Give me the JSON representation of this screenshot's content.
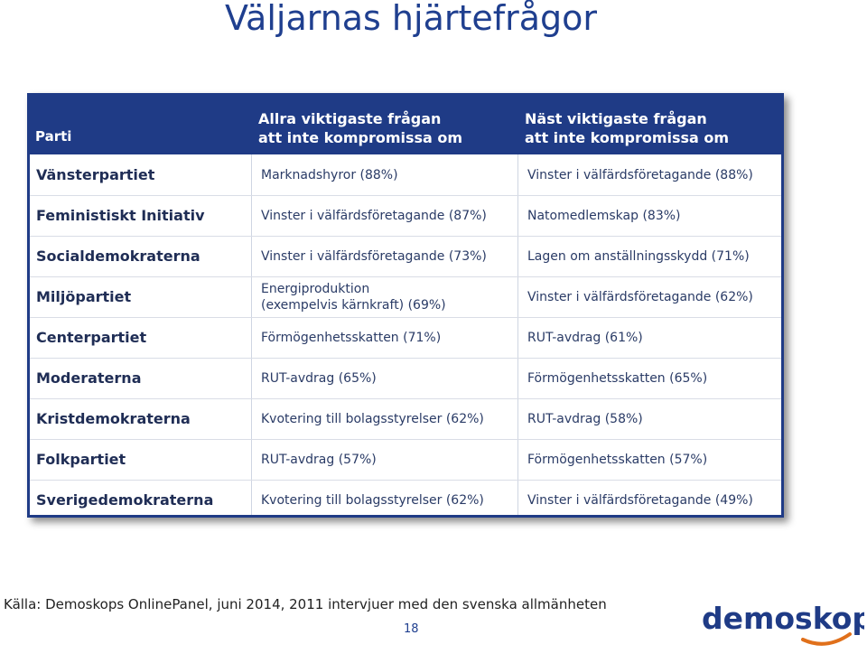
{
  "title": "Väljarnas hjärtefrågor",
  "table": {
    "headers": {
      "party": "Parti",
      "col1_line1": "Allra viktigaste frågan",
      "col1_line2": "att inte kompromissa om",
      "col2_line1": "Näst viktigaste frågan",
      "col2_line2": "att inte kompromissa om"
    },
    "rows": [
      {
        "party": "Vänsterpartiet",
        "first": "Marknadshyror (88%)",
        "second": "Vinster i välfärdsföretagande (88%)"
      },
      {
        "party": "Feministiskt Initiativ",
        "first": "Vinster i välfärdsföretagande (87%)",
        "second": "Natomedlemskap (83%)"
      },
      {
        "party": "Socialdemokraterna",
        "first": "Vinster i välfärdsföretagande (73%)",
        "second": "Lagen om anställningsskydd (71%)"
      },
      {
        "party": "Miljöpartiet",
        "first_line1": "Energiproduktion",
        "first_line2": "(exempelvis kärnkraft) (69%)",
        "second": "Vinster i välfärdsföretagande (62%)"
      },
      {
        "party": "Centerpartiet",
        "first": "Förmögenhetsskatten (71%)",
        "second": "RUT-avdrag (61%)"
      },
      {
        "party": "Moderaterna",
        "first": "RUT-avdrag (65%)",
        "second": "Förmögenhetsskatten (65%)"
      },
      {
        "party": "Kristdemokraterna",
        "first": "Kvotering till bolagsstyrelser (62%)",
        "second": "RUT-avdrag (58%)"
      },
      {
        "party": "Folkpartiet",
        "first": "RUT-avdrag (57%)",
        "second": "Förmögenhetsskatten (57%)"
      },
      {
        "party": "Sverigedemokraterna",
        "first": "Kvotering till bolagsstyrelser (62%)",
        "second": "Vinster i välfärdsföretagande (49%)"
      }
    ]
  },
  "source": "Källa: Demoskops OnlinePanel, juni 2014, 2011 intervjuer med den svenska allmänheten",
  "page_number": "18",
  "logo": {
    "text": "demoskop",
    "color": "#1f3b86",
    "accent_color": "#e0701b"
  },
  "colors": {
    "header_bg": "#1f3b86",
    "title": "#1f3f8f"
  }
}
